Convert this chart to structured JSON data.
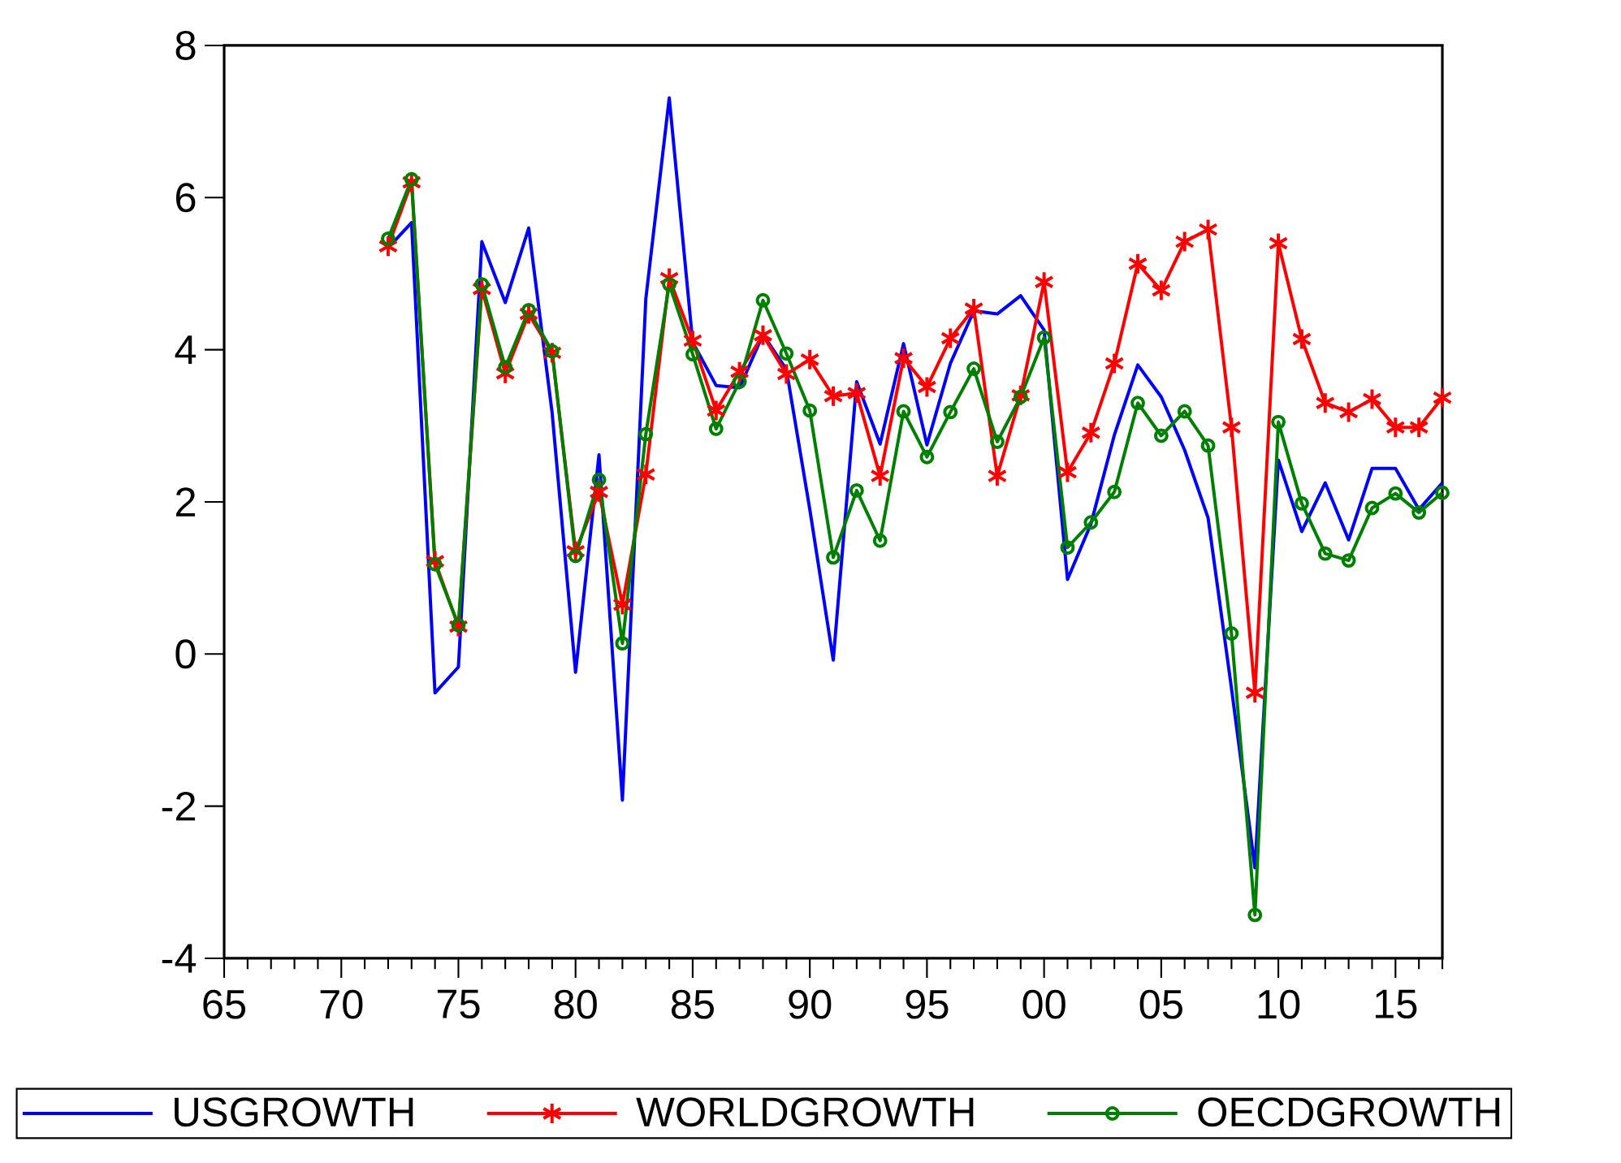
{
  "chart_data": {
    "type": "line",
    "x": [
      1972,
      1973,
      1974,
      1975,
      1976,
      1977,
      1978,
      1979,
      1980,
      1981,
      1982,
      1983,
      1984,
      1985,
      1986,
      1987,
      1988,
      1989,
      1990,
      1991,
      1992,
      1993,
      1994,
      1995,
      1996,
      1997,
      1998,
      1999,
      2000,
      2001,
      2002,
      2003,
      2004,
      2005,
      2006,
      2007,
      2008,
      2009,
      2010,
      2011,
      2012,
      2013,
      2014,
      2015,
      2016,
      2017
    ],
    "series": [
      {
        "name": "USGROWTH",
        "color": "#0000ff",
        "marker": "none",
        "values": [
          5.34,
          5.67,
          -0.51,
          -0.17,
          5.42,
          4.62,
          5.6,
          3.17,
          -0.24,
          2.62,
          -1.92,
          4.67,
          7.31,
          4.1,
          3.53,
          3.5,
          4.2,
          3.74,
          1.9,
          -0.08,
          3.58,
          2.76,
          4.08,
          2.75,
          3.82,
          4.51,
          4.47,
          4.71,
          4.26,
          0.98,
          1.71,
          2.88,
          3.8,
          3.38,
          2.68,
          1.79,
          -0.45,
          -2.81,
          2.55,
          1.61,
          2.25,
          1.5,
          2.44,
          2.44,
          1.9,
          2.25
        ]
      },
      {
        "name": "WORLDGROWTH",
        "color": "#ff0000",
        "marker": "cross",
        "values": [
          5.36,
          6.2,
          1.22,
          0.36,
          4.8,
          3.69,
          4.47,
          3.96,
          1.35,
          2.13,
          0.65,
          2.36,
          4.94,
          4.12,
          3.2,
          3.71,
          4.19,
          3.68,
          3.87,
          3.39,
          3.43,
          2.34,
          3.89,
          3.51,
          4.15,
          4.54,
          2.34,
          3.4,
          4.89,
          2.39,
          2.91,
          3.82,
          5.13,
          4.78,
          5.42,
          5.58,
          2.98,
          -0.51,
          5.4,
          4.14,
          3.3,
          3.18,
          3.35,
          2.98,
          2.98,
          3.37
        ]
      },
      {
        "name": "OECDGROWTH",
        "color": "#008000",
        "marker": "circle",
        "values": [
          5.46,
          6.24,
          1.18,
          0.38,
          4.86,
          3.77,
          4.52,
          3.98,
          1.29,
          2.29,
          0.14,
          2.89,
          4.86,
          3.94,
          2.96,
          3.58,
          4.65,
          3.95,
          3.2,
          1.27,
          2.15,
          1.49,
          3.19,
          2.59,
          3.18,
          3.75,
          2.79,
          3.38,
          4.16,
          1.4,
          1.73,
          2.13,
          3.3,
          2.87,
          3.19,
          2.74,
          0.27,
          -3.43,
          3.05,
          1.98,
          1.32,
          1.23,
          1.92,
          2.11,
          1.86,
          2.12
        ]
      }
    ],
    "xlim": [
      1965,
      2017
    ],
    "ylim": [
      -4,
      8
    ],
    "xticks": [
      {
        "value": 1965,
        "label": "65"
      },
      {
        "value": 1966,
        "label": null
      },
      {
        "value": 1967,
        "label": null
      },
      {
        "value": 1968,
        "label": null
      },
      {
        "value": 1969,
        "label": null
      },
      {
        "value": 1970,
        "label": "70"
      },
      {
        "value": 1971,
        "label": null
      },
      {
        "value": 1972,
        "label": null
      },
      {
        "value": 1973,
        "label": null
      },
      {
        "value": 1974,
        "label": null
      },
      {
        "value": 1975,
        "label": "75"
      },
      {
        "value": 1976,
        "label": null
      },
      {
        "value": 1977,
        "label": null
      },
      {
        "value": 1978,
        "label": null
      },
      {
        "value": 1979,
        "label": null
      },
      {
        "value": 1980,
        "label": "80"
      },
      {
        "value": 1981,
        "label": null
      },
      {
        "value": 1982,
        "label": null
      },
      {
        "value": 1983,
        "label": null
      },
      {
        "value": 1984,
        "label": null
      },
      {
        "value": 1985,
        "label": "85"
      },
      {
        "value": 1986,
        "label": null
      },
      {
        "value": 1987,
        "label": null
      },
      {
        "value": 1988,
        "label": null
      },
      {
        "value": 1989,
        "label": null
      },
      {
        "value": 1990,
        "label": "90"
      },
      {
        "value": 1991,
        "label": null
      },
      {
        "value": 1992,
        "label": null
      },
      {
        "value": 1993,
        "label": null
      },
      {
        "value": 1994,
        "label": null
      },
      {
        "value": 1995,
        "label": "95"
      },
      {
        "value": 1996,
        "label": null
      },
      {
        "value": 1997,
        "label": null
      },
      {
        "value": 1998,
        "label": null
      },
      {
        "value": 1999,
        "label": null
      },
      {
        "value": 2000,
        "label": "00"
      },
      {
        "value": 2001,
        "label": null
      },
      {
        "value": 2002,
        "label": null
      },
      {
        "value": 2003,
        "label": null
      },
      {
        "value": 2004,
        "label": null
      },
      {
        "value": 2005,
        "label": "05"
      },
      {
        "value": 2006,
        "label": null
      },
      {
        "value": 2007,
        "label": null
      },
      {
        "value": 2008,
        "label": null
      },
      {
        "value": 2009,
        "label": null
      },
      {
        "value": 2010,
        "label": "10"
      },
      {
        "value": 2011,
        "label": null
      },
      {
        "value": 2012,
        "label": null
      },
      {
        "value": 2013,
        "label": null
      },
      {
        "value": 2014,
        "label": null
      },
      {
        "value": 2015,
        "label": "15"
      },
      {
        "value": 2016,
        "label": null
      },
      {
        "value": 2017,
        "label": null
      }
    ],
    "yticks": [
      -4,
      -2,
      0,
      2,
      4,
      6,
      8
    ],
    "grid": false,
    "legend": "bottom",
    "line_style": "solid"
  }
}
